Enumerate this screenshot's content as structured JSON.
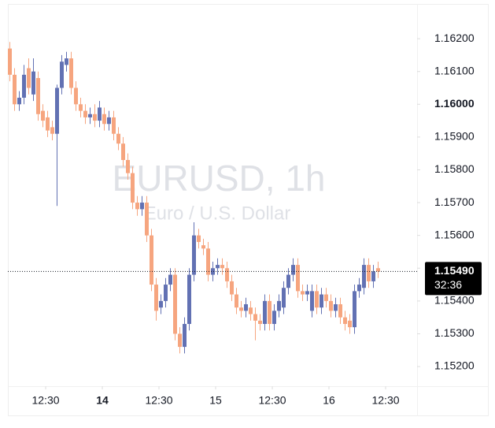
{
  "chart_data": {
    "type": "candlestick",
    "title": "EURUSD, 1h",
    "subtitle": "Euro / U.S. Dollar",
    "up_color": "#6271b3",
    "down_color": "#f6a57f",
    "candles": [
      [
        1.1617,
        1.1619,
        1.1607,
        1.1609
      ],
      [
        1.1609,
        1.1611,
        1.1598,
        1.16
      ],
      [
        1.16,
        1.1604,
        1.1598,
        1.1602
      ],
      [
        1.1602,
        1.1612,
        1.16,
        1.1609
      ],
      [
        1.1611,
        1.1614,
        1.1603,
        1.1605
      ],
      [
        1.1603,
        1.1614,
        1.1601,
        1.161
      ],
      [
        1.1608,
        1.161,
        1.1595,
        1.1597
      ],
      [
        1.1598,
        1.16,
        1.1593,
        1.1595
      ],
      [
        1.1596,
        1.1598,
        1.159,
        1.1592
      ],
      [
        1.1593,
        1.1595,
        1.1589,
        1.1591
      ],
      [
        1.1591,
        1.1606,
        1.1569,
        1.1605
      ],
      [
        1.1605,
        1.1615,
        1.1603,
        1.1613
      ],
      [
        1.1612,
        1.1616,
        1.161,
        1.1614
      ],
      [
        1.1614,
        1.1616,
        1.1603,
        1.1605
      ],
      [
        1.1605,
        1.1607,
        1.1598,
        1.16
      ],
      [
        1.16,
        1.1602,
        1.1596,
        1.1598
      ],
      [
        1.1598,
        1.16,
        1.1594,
        1.1596
      ],
      [
        1.1596,
        1.1599,
        1.1594,
        1.1597
      ],
      [
        1.1597,
        1.16,
        1.1593,
        1.1595
      ],
      [
        1.1595,
        1.1601,
        1.1593,
        1.1599
      ],
      [
        1.1597,
        1.1599,
        1.1592,
        1.1594
      ],
      [
        1.1594,
        1.1598,
        1.1592,
        1.1596
      ],
      [
        1.1596,
        1.1598,
        1.1589,
        1.1591
      ],
      [
        1.1591,
        1.1593,
        1.1586,
        1.1588
      ],
      [
        1.1588,
        1.159,
        1.1581,
        1.1583
      ],
      [
        1.1583,
        1.1585,
        1.1577,
        1.1579
      ],
      [
        1.1579,
        1.1581,
        1.1568,
        1.157
      ],
      [
        1.157,
        1.1572,
        1.1566,
        1.1568
      ],
      [
        1.1568,
        1.1572,
        1.1566,
        1.157
      ],
      [
        1.157,
        1.1572,
        1.1558,
        1.156
      ],
      [
        1.156,
        1.1562,
        1.1543,
        1.1545
      ],
      [
        1.1545,
        1.1547,
        1.1534,
        1.1537
      ],
      [
        1.1538,
        1.1542,
        1.1536,
        1.154
      ],
      [
        1.154,
        1.1547,
        1.1538,
        1.1545
      ],
      [
        1.1545,
        1.155,
        1.1543,
        1.1548
      ],
      [
        1.1548,
        1.155,
        1.1528,
        1.153
      ],
      [
        1.153,
        1.1532,
        1.1524,
        1.1526
      ],
      [
        1.1526,
        1.1535,
        1.1524,
        1.1533
      ],
      [
        1.1533,
        1.155,
        1.1531,
        1.1548
      ],
      [
        1.1548,
        1.1564,
        1.1546,
        1.156
      ],
      [
        1.156,
        1.1562,
        1.1556,
        1.1558
      ],
      [
        1.1557,
        1.1559,
        1.1554,
        1.1556
      ],
      [
        1.1556,
        1.1558,
        1.1546,
        1.1548
      ],
      [
        1.1548,
        1.1552,
        1.1546,
        1.155
      ],
      [
        1.155,
        1.1553,
        1.1548,
        1.1551
      ],
      [
        1.1551,
        1.1553,
        1.1548,
        1.155
      ],
      [
        1.155,
        1.1552,
        1.1544,
        1.1546
      ],
      [
        1.1546,
        1.1548,
        1.154,
        1.1542
      ],
      [
        1.1542,
        1.1544,
        1.1536,
        1.1538
      ],
      [
        1.1538,
        1.154,
        1.1535,
        1.1537
      ],
      [
        1.1537,
        1.1541,
        1.1535,
        1.1539
      ],
      [
        1.1538,
        1.154,
        1.1534,
        1.1536
      ],
      [
        1.1536,
        1.1538,
        1.1528,
        1.1534
      ],
      [
        1.1534,
        1.1536,
        1.1531,
        1.1533
      ],
      [
        1.1533,
        1.1542,
        1.1531,
        1.154
      ],
      [
        1.154,
        1.1542,
        1.1531,
        1.1533
      ],
      [
        1.1533,
        1.1539,
        1.1531,
        1.1537
      ],
      [
        1.1537,
        1.1542,
        1.1535,
        1.154
      ],
      [
        1.1538,
        1.1546,
        1.1536,
        1.1544
      ],
      [
        1.1544,
        1.155,
        1.1542,
        1.1548
      ],
      [
        1.1548,
        1.1553,
        1.1546,
        1.1551
      ],
      [
        1.1551,
        1.1553,
        1.1541,
        1.1543
      ],
      [
        1.1543,
        1.1545,
        1.154,
        1.1542
      ],
      [
        1.1542,
        1.1545,
        1.154,
        1.1543
      ],
      [
        1.1537,
        1.1545,
        1.1535,
        1.1543
      ],
      [
        1.1543,
        1.1545,
        1.1536,
        1.1538
      ],
      [
        1.1538,
        1.1544,
        1.1536,
        1.1542
      ],
      [
        1.1542,
        1.1544,
        1.1538,
        1.154
      ],
      [
        1.154,
        1.1542,
        1.1535,
        1.1537
      ],
      [
        1.1537,
        1.1541,
        1.1535,
        1.1539
      ],
      [
        1.1539,
        1.1541,
        1.1533,
        1.1535
      ],
      [
        1.1535,
        1.1537,
        1.1531,
        1.1533
      ],
      [
        1.1534,
        1.1536,
        1.153,
        1.1532
      ],
      [
        1.1532,
        1.1545,
        1.153,
        1.1543
      ],
      [
        1.1543,
        1.1547,
        1.1541,
        1.1545
      ],
      [
        1.1544,
        1.1553,
        1.1542,
        1.1551
      ],
      [
        1.1551,
        1.1553,
        1.1544,
        1.1546
      ],
      [
        1.1546,
        1.1551,
        1.1544,
        1.1549
      ],
      [
        1.155,
        1.1552,
        1.1547,
        1.1549
      ]
    ],
    "ylim": [
      1.1514,
      1.16294
    ],
    "yticks": [
      {
        "value": 1.162,
        "label": "1.16200"
      },
      {
        "value": 1.161,
        "label": "1.16100"
      },
      {
        "value": 1.16,
        "label": "1.16000",
        "bold": true
      },
      {
        "value": 1.159,
        "label": "1.15900"
      },
      {
        "value": 1.158,
        "label": "1.15800"
      },
      {
        "value": 1.157,
        "label": "1.15700"
      },
      {
        "value": 1.156,
        "label": "1.15600"
      },
      {
        "value": 1.155,
        "label": "1.15500"
      },
      {
        "value": 1.154,
        "label": "1.15400"
      },
      {
        "value": 1.153,
        "label": "1.15300"
      },
      {
        "value": 1.152,
        "label": "1.15200"
      }
    ],
    "xticks": [
      {
        "value": 7.67,
        "label": "12:30"
      },
      {
        "value": 19.67,
        "label": "14",
        "bold": true
      },
      {
        "value": 31.67,
        "label": "12:30"
      },
      {
        "value": 43.67,
        "label": "15"
      },
      {
        "value": 55.67,
        "label": "12:30"
      },
      {
        "value": 67.67,
        "label": "16"
      },
      {
        "value": 79.67,
        "label": "12:30"
      }
    ],
    "last": {
      "value": 1.1549,
      "label": "1.15490",
      "countdown": "32:36"
    }
  }
}
